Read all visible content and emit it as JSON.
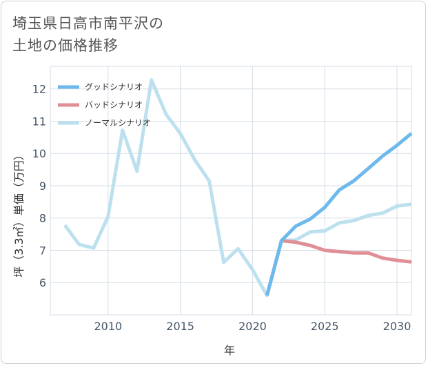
{
  "title_lines": [
    "埼玉県日高市南平沢の",
    "土地の価格推移"
  ],
  "chart_data": {
    "type": "line",
    "title": "埼玉県日高市南平沢の土地の価格推移",
    "xlabel": "年",
    "ylabel": "坪（3.3㎡）単価（万円）",
    "xlim": [
      2006,
      2031
    ],
    "ylim": [
      5.0,
      12.7
    ],
    "xticks": [
      2010,
      2015,
      2020,
      2025,
      2030
    ],
    "yticks": [
      6,
      7,
      8,
      9,
      10,
      11,
      12
    ],
    "legend_position": "top-left",
    "series": [
      {
        "name": "グッドシナリオ",
        "color": "#6db9ec",
        "x": [
          2021,
          2022,
          2023,
          2024,
          2025,
          2026,
          2027,
          2028,
          2029,
          2030,
          2031
        ],
        "values": [
          5.6,
          7.3,
          7.75,
          7.97,
          8.33,
          8.87,
          9.15,
          9.53,
          9.92,
          10.25,
          10.62
        ]
      },
      {
        "name": "バッドシナリオ",
        "color": "#e08f96",
        "x": [
          2021,
          2022,
          2023,
          2024,
          2025,
          2026,
          2027,
          2028,
          2029,
          2030,
          2031
        ],
        "values": [
          5.6,
          7.3,
          7.25,
          7.15,
          7.0,
          6.96,
          6.92,
          6.92,
          6.76,
          6.69,
          6.64
        ]
      },
      {
        "name": "ノーマルシナリオ",
        "color": "#bde0ef",
        "x": [
          2007,
          2008,
          2009,
          2010,
          2011,
          2012,
          2013,
          2014,
          2015,
          2016,
          2017,
          2018,
          2019,
          2020,
          2021,
          2022,
          2023,
          2024,
          2025,
          2026,
          2027,
          2028,
          2029,
          2030,
          2031
        ],
        "values": [
          7.78,
          7.18,
          7.07,
          8.05,
          10.72,
          9.45,
          12.28,
          11.22,
          10.62,
          9.8,
          9.15,
          6.63,
          7.05,
          6.4,
          5.6,
          7.3,
          7.32,
          7.57,
          7.6,
          7.85,
          7.92,
          8.08,
          8.15,
          8.37,
          8.43
        ]
      }
    ]
  }
}
